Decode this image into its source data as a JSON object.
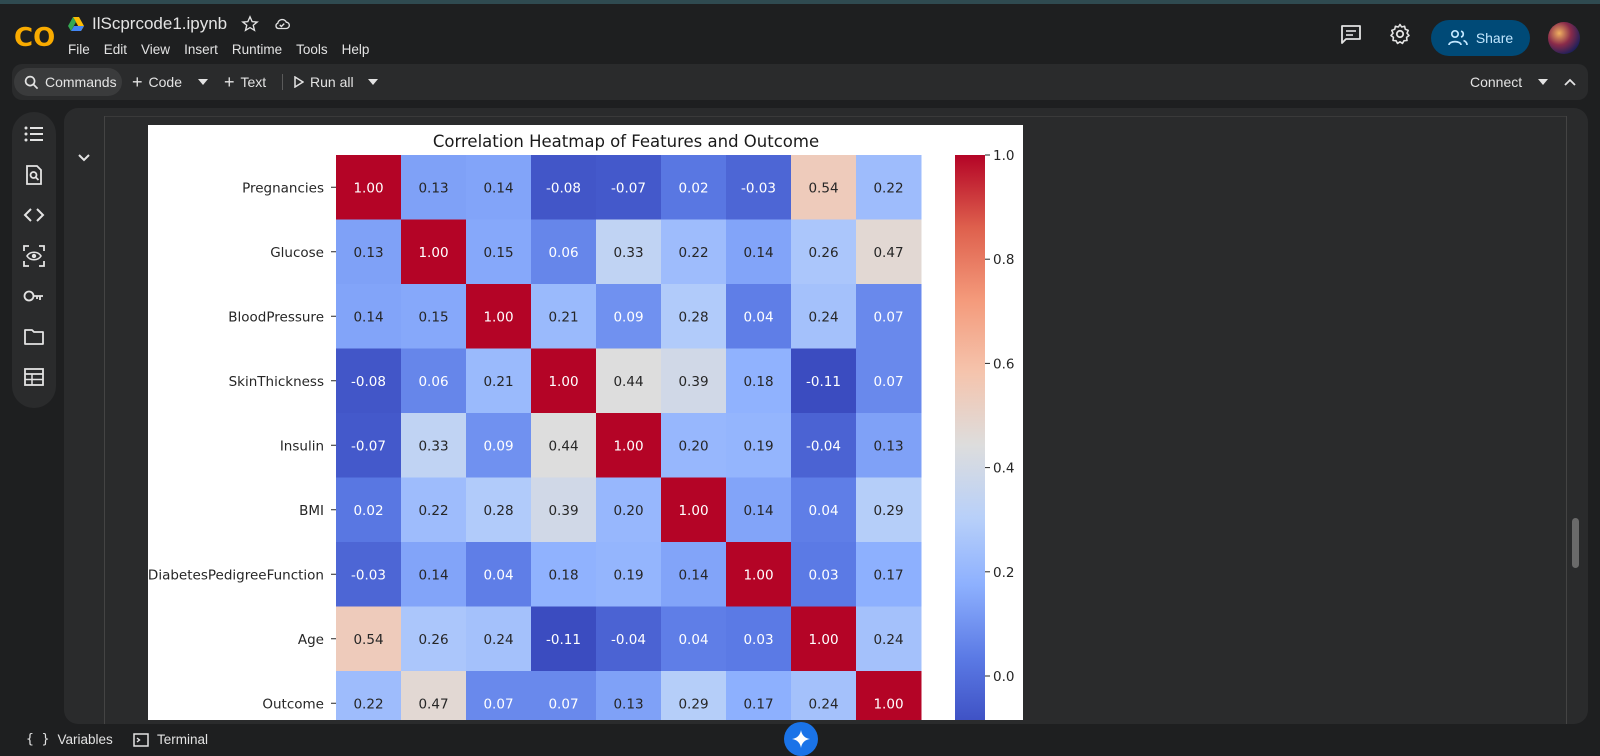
{
  "header": {
    "filename": "IlScprcode1.ipynb",
    "menu": [
      "File",
      "Edit",
      "View",
      "Insert",
      "Runtime",
      "Tools",
      "Help"
    ],
    "share_label": "Share"
  },
  "toolbar": {
    "commands_label": "Commands",
    "code_label": "Code",
    "text_label": "Text",
    "run_all_label": "Run all",
    "connect_label": "Connect"
  },
  "footer": {
    "variables_label": "Variables",
    "terminal_label": "Terminal"
  },
  "colors": {
    "accent": "#004a77",
    "logo_orange": "#f9ab00",
    "gemini": "#1a73e8"
  },
  "chart_data": {
    "type": "heatmap",
    "title": "Correlation Heatmap of Features and Outcome",
    "rows": [
      "Pregnancies",
      "Glucose",
      "BloodPressure",
      "SkinThickness",
      "Insulin",
      "BMI",
      "DiabetesPedigreeFunction",
      "Age",
      "Outcome"
    ],
    "values": [
      [
        1.0,
        0.13,
        0.14,
        -0.08,
        -0.07,
        0.02,
        -0.03,
        0.54,
        0.22
      ],
      [
        0.13,
        1.0,
        0.15,
        0.06,
        0.33,
        0.22,
        0.14,
        0.26,
        0.47
      ],
      [
        0.14,
        0.15,
        1.0,
        0.21,
        0.09,
        0.28,
        0.04,
        0.24,
        0.07
      ],
      [
        -0.08,
        0.06,
        0.21,
        1.0,
        0.44,
        0.39,
        0.18,
        -0.11,
        0.07
      ],
      [
        -0.07,
        0.33,
        0.09,
        0.44,
        1.0,
        0.2,
        0.19,
        -0.04,
        0.13
      ],
      [
        0.02,
        0.22,
        0.28,
        0.39,
        0.2,
        1.0,
        0.14,
        0.04,
        0.29
      ],
      [
        -0.03,
        0.14,
        0.04,
        0.18,
        0.19,
        0.14,
        1.0,
        0.03,
        0.17
      ],
      [
        0.54,
        0.26,
        0.24,
        -0.11,
        -0.04,
        0.04,
        0.03,
        1.0,
        0.24
      ],
      [
        0.22,
        0.47,
        0.07,
        0.07,
        0.13,
        0.29,
        0.17,
        0.24,
        1.0
      ]
    ],
    "colorbar_ticks": [
      "1.0",
      "0.8",
      "0.6",
      "0.4",
      "0.2",
      "0.0"
    ],
    "vmin": -0.11,
    "vmax": 1.0,
    "colormap": "coolwarm"
  }
}
